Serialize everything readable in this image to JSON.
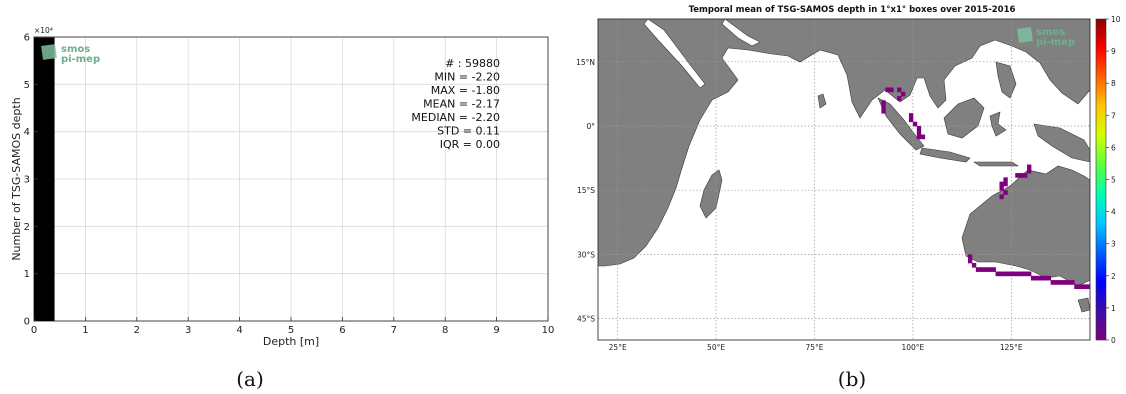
{
  "chart_data": [
    {
      "type": "bar",
      "title": "",
      "xlabel": "Depth [m]",
      "ylabel": "Number of TSG-SAMOS depth",
      "y_exponent_label": "×10⁴",
      "xlim": [
        0,
        10
      ],
      "ylim": [
        0,
        60000
      ],
      "x_ticks": [
        0,
        1,
        2,
        3,
        4,
        5,
        6,
        7,
        8,
        9,
        10
      ],
      "y_ticks": [
        0,
        10000,
        20000,
        30000,
        40000,
        50000,
        60000
      ],
      "y_tick_labels": [
        "0",
        "1",
        "2",
        "3",
        "4",
        "5",
        "6"
      ],
      "grid": true,
      "bins": [
        {
          "x0": 0,
          "x1": 0.4,
          "value": 59880
        }
      ],
      "bar_color": "#000000",
      "stats": [
        "# : 59880",
        "MIN = -2.20",
        "MAX =  -1.80",
        "MEAN = -2.17",
        "MEDIAN = -2.20",
        "STD = 0.11",
        "IQR = 0.00"
      ],
      "logo": [
        "smos",
        "pi-mep"
      ],
      "caption": "(a)"
    },
    {
      "type": "heatmap",
      "title": "Temporal mean of TSG-SAMOS depth in 1°x1° boxes over 2015-2016",
      "lon_range": [
        20,
        145
      ],
      "lat_range": [
        -50,
        25
      ],
      "lon_ticks": [
        25,
        50,
        75,
        100,
        125
      ],
      "lon_tick_labels": [
        "25°E",
        "50°E",
        "75°E",
        "100°E",
        "125°E"
      ],
      "lat_ticks": [
        15,
        0,
        -15,
        -30,
        -45
      ],
      "lat_tick_labels": [
        "15°N",
        "0°",
        "15°S",
        "30°S",
        "45°S"
      ],
      "colorbar": {
        "min": 0,
        "max": 10,
        "ticks": [
          0,
          1,
          2,
          3,
          4,
          5,
          6,
          7,
          8,
          9,
          10
        ],
        "tick_labels": [
          "0",
          "1",
          "2",
          "3",
          "4",
          "5",
          "6",
          "7",
          "8",
          "9",
          "10"
        ],
        "colors": [
          "#7f007f",
          "#3b0fa8",
          "#0000ff",
          "#005fff",
          "#00c8ff",
          "#00ffb4",
          "#5aff3c",
          "#d2ff00",
          "#ffc800",
          "#ff6400",
          "#ff0000",
          "#8b0000"
        ]
      },
      "land_color": "#808080",
      "ocean_color": "#ffffff",
      "cell_color": "#7f007f",
      "cells": [
        [
          93,
          8
        ],
        [
          94,
          8
        ],
        [
          96,
          8
        ],
        [
          97,
          7
        ],
        [
          96,
          6
        ],
        [
          92,
          5
        ],
        [
          92,
          4
        ],
        [
          92,
          3
        ],
        [
          99,
          2
        ],
        [
          99,
          1
        ],
        [
          100,
          0
        ],
        [
          101,
          -1
        ],
        [
          101,
          -2
        ],
        [
          101,
          -3
        ],
        [
          102,
          -3
        ],
        [
          129,
          -10
        ],
        [
          129,
          -11
        ],
        [
          126,
          -12
        ],
        [
          127,
          -12
        ],
        [
          128,
          -12
        ],
        [
          123,
          -13
        ],
        [
          123,
          -14
        ],
        [
          122,
          -14
        ],
        [
          122,
          -15
        ],
        [
          123,
          -16
        ],
        [
          122,
          -17
        ],
        [
          114,
          -31
        ],
        [
          114,
          -32
        ],
        [
          115,
          -33
        ],
        [
          116,
          -34
        ],
        [
          117,
          -34
        ],
        [
          118,
          -34
        ],
        [
          119,
          -34
        ],
        [
          120,
          -34
        ],
        [
          121,
          -35
        ],
        [
          122,
          -35
        ],
        [
          123,
          -35
        ],
        [
          124,
          -35
        ],
        [
          125,
          -35
        ],
        [
          126,
          -35
        ],
        [
          127,
          -35
        ],
        [
          128,
          -35
        ],
        [
          129,
          -35
        ],
        [
          130,
          -36
        ],
        [
          131,
          -36
        ],
        [
          132,
          -36
        ],
        [
          133,
          -36
        ],
        [
          134,
          -36
        ],
        [
          135,
          -37
        ],
        [
          136,
          -37
        ],
        [
          137,
          -37
        ],
        [
          138,
          -37
        ],
        [
          139,
          -37
        ],
        [
          140,
          -37
        ],
        [
          141,
          -38
        ],
        [
          142,
          -38
        ],
        [
          143,
          -38
        ],
        [
          144,
          -38
        ]
      ],
      "logo": [
        "smos",
        "pi-mep"
      ],
      "caption": "(b)"
    }
  ]
}
